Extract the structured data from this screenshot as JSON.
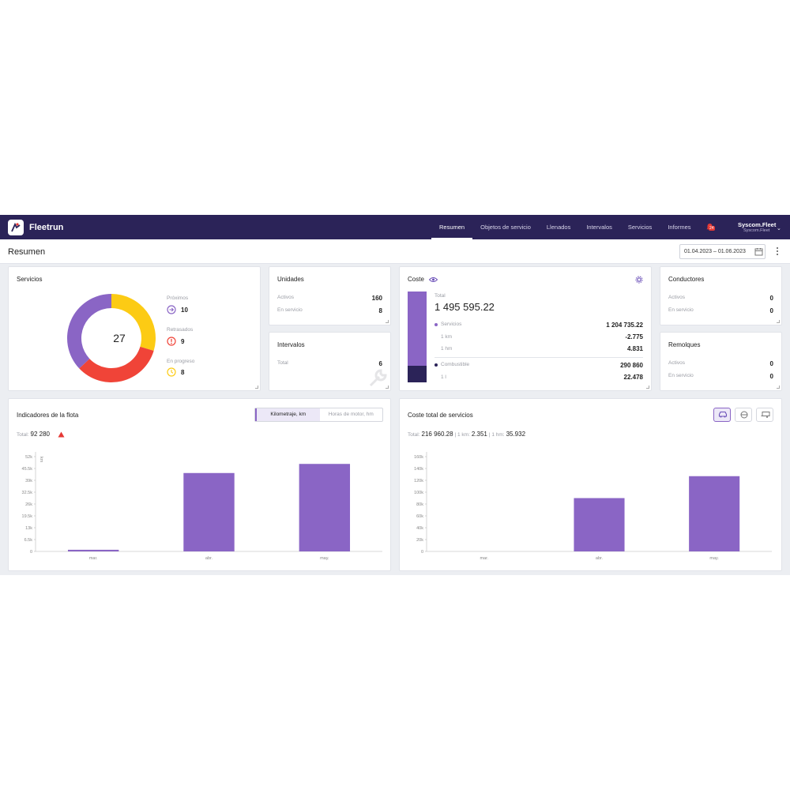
{
  "app": {
    "name": "Fleetrun"
  },
  "nav": {
    "items": [
      {
        "label": "Resumen",
        "active": true
      },
      {
        "label": "Objetos de servicio",
        "active": false
      },
      {
        "label": "Llenados",
        "active": false
      },
      {
        "label": "Intervalos",
        "active": false
      },
      {
        "label": "Servicios",
        "active": false
      },
      {
        "label": "Informes",
        "active": false
      }
    ],
    "notification_badge": "24"
  },
  "user": {
    "name": "Syscom.Fleet",
    "account": "Syscom.Fleet"
  },
  "page": {
    "title": "Resumen",
    "date_range": "01.04.2023 – 01.06.2023"
  },
  "servicios": {
    "title": "Servicios",
    "total": "27",
    "legend": [
      {
        "label": "Próximos",
        "value": "10",
        "color": "#8a65c5",
        "icon": "arrow-right-circle-icon"
      },
      {
        "label": "Retrasados",
        "value": "9",
        "color": "#f04438",
        "icon": "alert-circle-icon"
      },
      {
        "label": "En progreso",
        "value": "8",
        "color": "#fccb14",
        "icon": "clock-icon"
      }
    ],
    "donut_values": [
      10,
      9,
      8
    ]
  },
  "unidades": {
    "title": "Unidades",
    "rows": [
      {
        "label": "Activos",
        "value": "160"
      },
      {
        "label": "En servicio",
        "value": "8"
      }
    ]
  },
  "intervalos": {
    "title": "Intervalos",
    "rows": [
      {
        "label": "Total",
        "value": "6"
      }
    ]
  },
  "coste": {
    "title": "Coste",
    "total_label": "Total",
    "total_value": "1 495 595.22",
    "servicios": {
      "label": "Servicios",
      "value": "1 204 735.22",
      "color": "#8a65c5"
    },
    "km": {
      "label": "1 km",
      "value": "-2.775"
    },
    "hm": {
      "label": "1 hm",
      "value": "4.831"
    },
    "combustible": {
      "label": "Combustible",
      "value": "290 860",
      "color": "#2b2358"
    },
    "litro": {
      "label": "1 l",
      "value": "22.478"
    }
  },
  "conductores": {
    "title": "Conductores",
    "rows": [
      {
        "label": "Activos",
        "value": "0"
      },
      {
        "label": "En servicio",
        "value": "0"
      }
    ]
  },
  "remolques": {
    "title": "Remolques",
    "rows": [
      {
        "label": "Activos",
        "value": "0"
      },
      {
        "label": "En servicio",
        "value": "0"
      }
    ]
  },
  "indicadores": {
    "title": "Indicadores de la flota",
    "tabs": [
      "Kilometraje, km",
      "Horas de motor, hm"
    ],
    "total_label": "Total:",
    "total_value": "92 280"
  },
  "coste_total": {
    "title": "Coste total de servicios",
    "summary": {
      "total_label": "Total:",
      "total_value": "216 960.28",
      "km_label": "1 km:",
      "km_value": "2.351",
      "hm_label": "1 hm:",
      "hm_value": "35.932"
    }
  },
  "chart_data": [
    {
      "type": "bar",
      "categories": [
        "mar.",
        "abr.",
        "may."
      ],
      "values": [
        900,
        43000,
        48000
      ],
      "ylim": [
        0,
        52000
      ],
      "ytick_labels": [
        "0",
        "6.5k",
        "13k",
        "19.5k",
        "26k",
        "32.5k",
        "39k",
        "45.5k",
        "52k"
      ],
      "ylabel": "km",
      "color": "#8a65c5"
    },
    {
      "type": "bar",
      "categories": [
        "mar.",
        "abr.",
        "may."
      ],
      "values": [
        0,
        90000,
        127000
      ],
      "ylim": [
        0,
        160000
      ],
      "ytick_labels": [
        "0",
        "20k",
        "40k",
        "60k",
        "80k",
        "100k",
        "120k",
        "140k",
        "160k"
      ],
      "color": "#8a65c5"
    }
  ]
}
